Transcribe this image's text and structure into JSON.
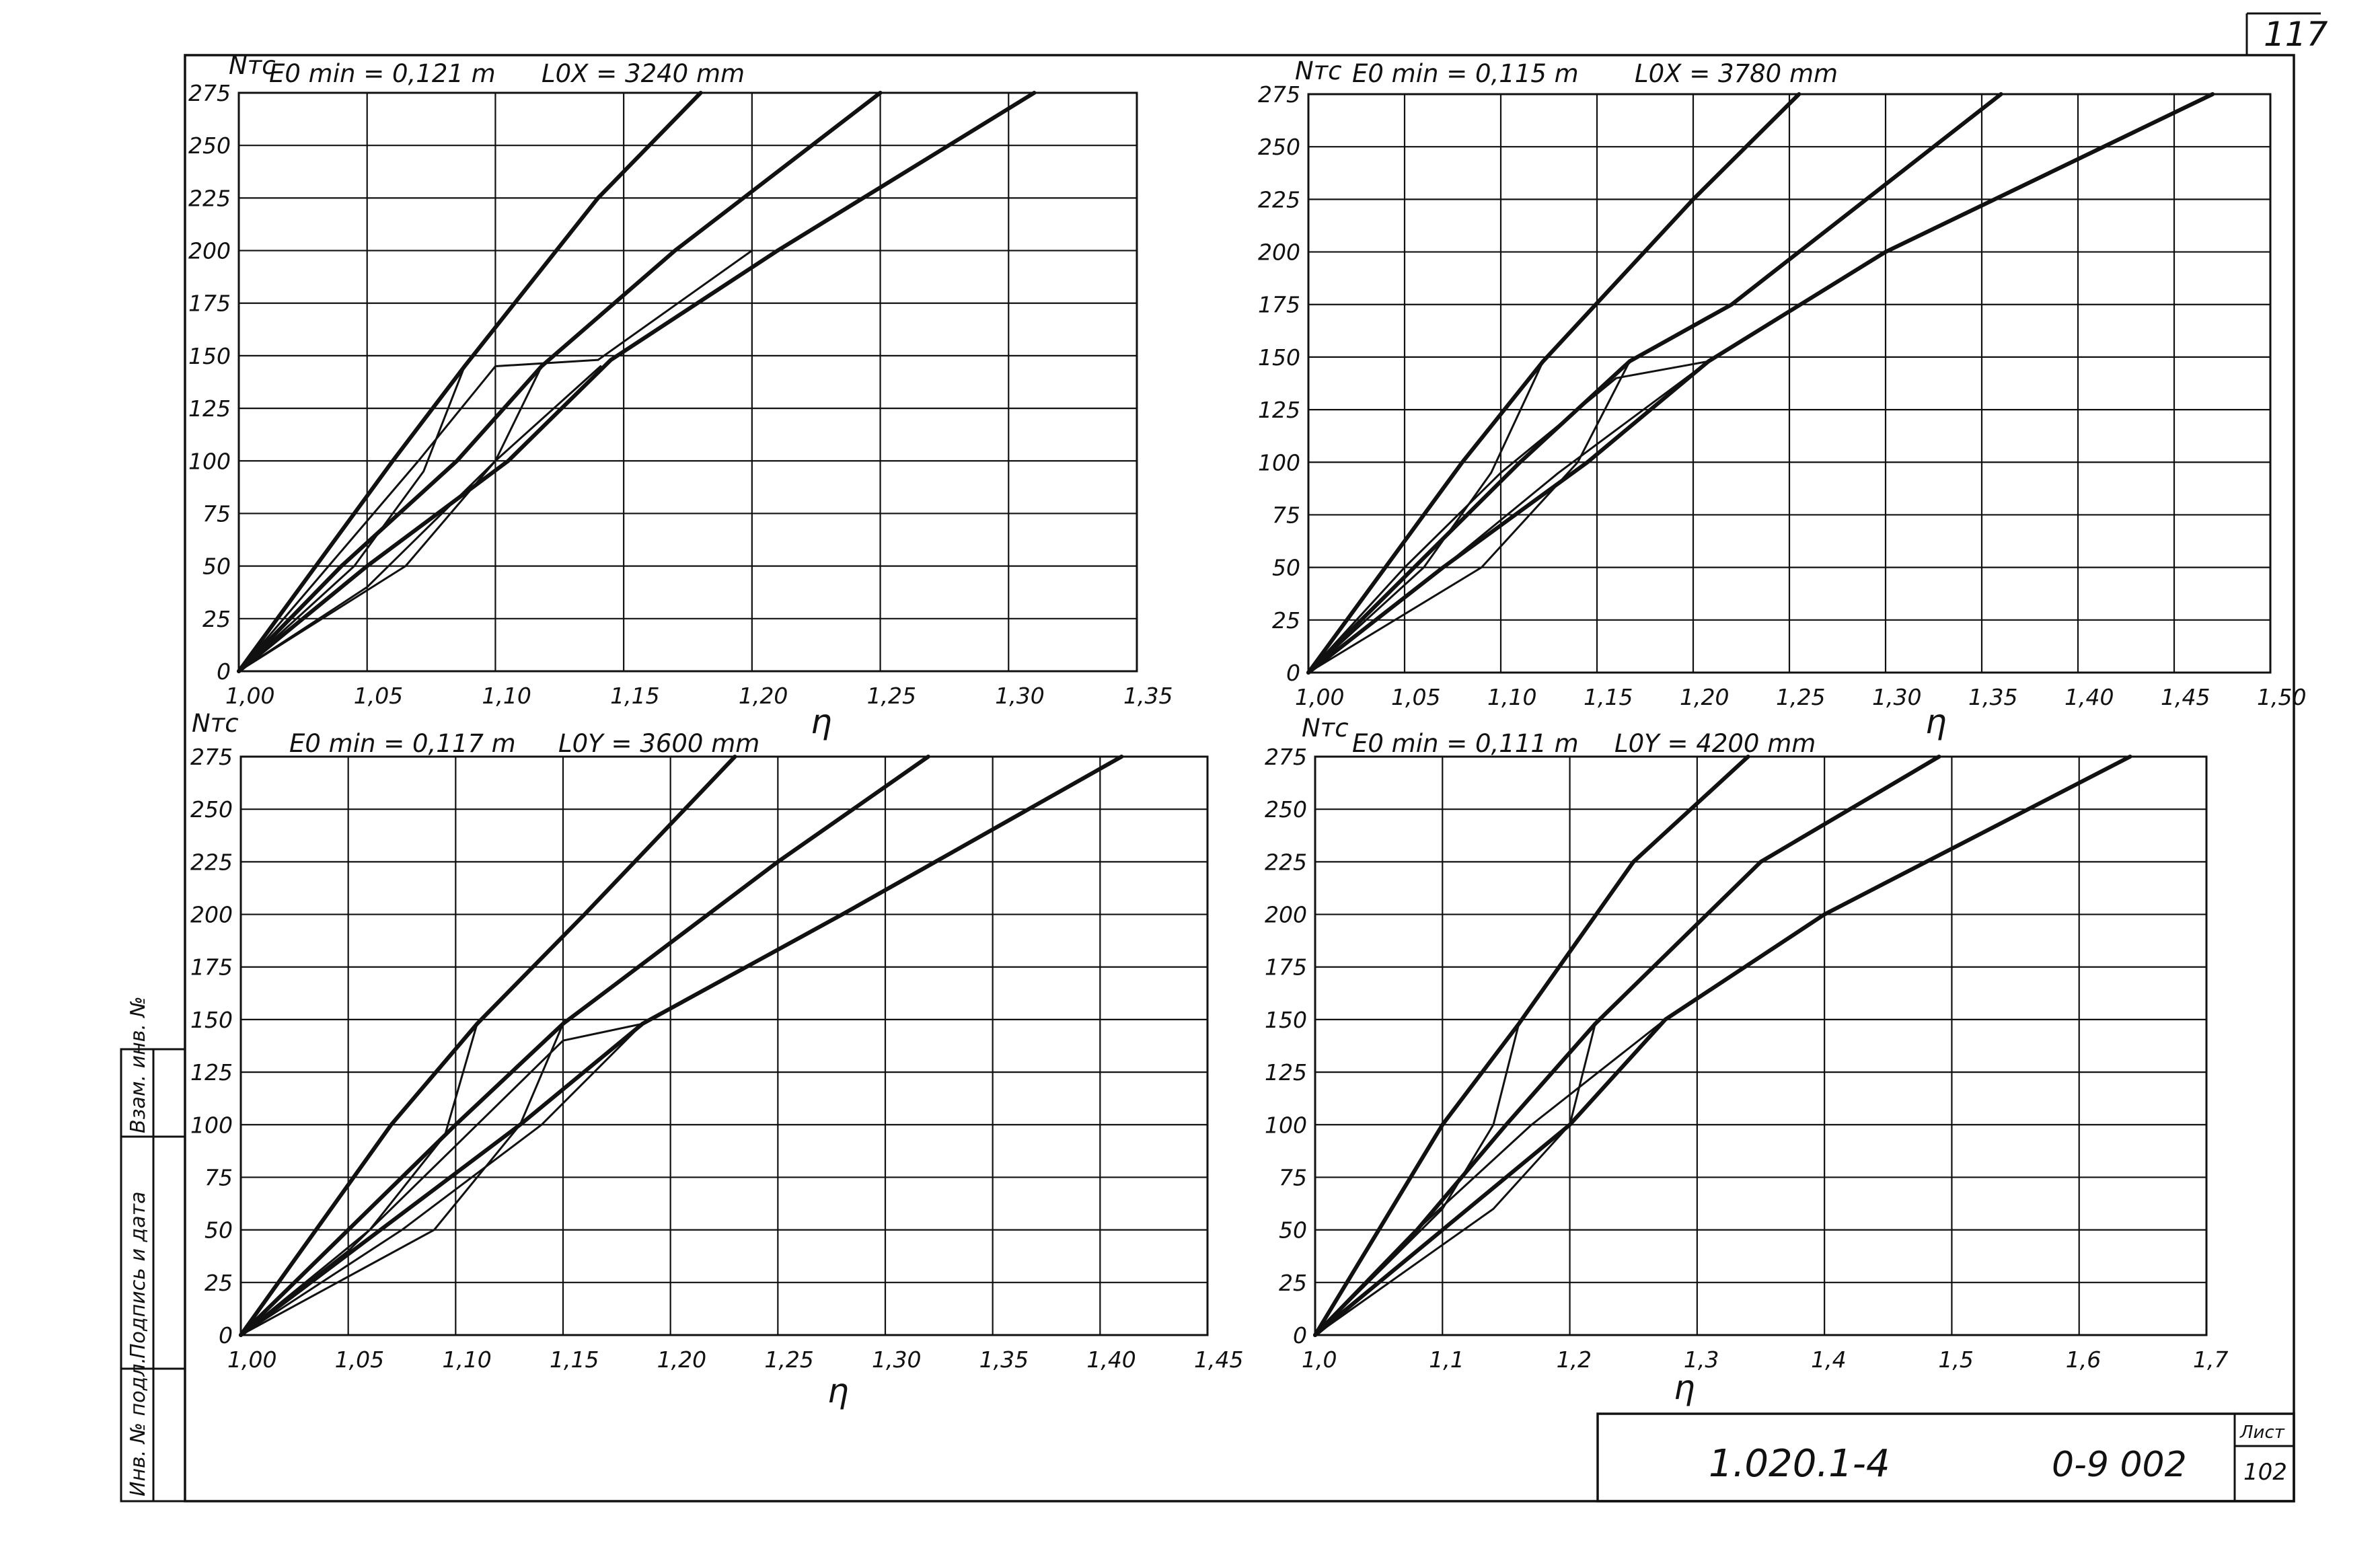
{
  "sheet": {
    "page_number": "117",
    "doc_code": "1.020.1-4",
    "doc_issue": "0-9 002",
    "sheet_label": "Лист",
    "sheet_number": "102",
    "side_stamp": [
      "Инв. № подл.",
      "Подпись и дата",
      "Взам. инв. №"
    ]
  },
  "chart_data": [
    {
      "type": "line",
      "id": "top-left",
      "y_label": "Nтс",
      "x_label": "η",
      "param_e": "E0 min = 0,121 m",
      "param_l": "L0X = 3240 mm",
      "xlim": [
        1.0,
        1.35
      ],
      "ylim": [
        0,
        275
      ],
      "x_ticks": [
        1.0,
        1.05,
        1.1,
        1.15,
        1.2,
        1.25,
        1.3,
        1.35
      ],
      "x_tick_labels": [
        "1,00",
        "1,05",
        "1,10",
        "1,15",
        "1,20",
        "1,25",
        "1,30",
        "1,35"
      ],
      "y_ticks": [
        0,
        25,
        50,
        75,
        100,
        125,
        150,
        175,
        200,
        225,
        250,
        275
      ],
      "y_tick_labels": [
        "0",
        "25",
        "50",
        "75",
        "100",
        "125",
        "150",
        "175",
        "200",
        "225",
        "250",
        "275"
      ],
      "grid": true,
      "series": [
        {
          "points": [
            [
              1.0,
              0
            ],
            [
              1.03,
              50
            ],
            [
              1.06,
              100
            ],
            [
              1.088,
              145
            ],
            [
              1.14,
              225
            ],
            [
              1.18,
              275
            ]
          ]
        },
        {
          "points": [
            [
              1.0,
              0
            ],
            [
              1.04,
              50
            ],
            [
              1.085,
              100
            ],
            [
              1.118,
              145
            ],
            [
              1.17,
              200
            ],
            [
              1.25,
              275
            ]
          ]
        },
        {
          "points": [
            [
              1.0,
              0
            ],
            [
              1.05,
              50
            ],
            [
              1.105,
              100
            ],
            [
              1.145,
              148
            ],
            [
              1.21,
              200
            ],
            [
              1.31,
              275
            ]
          ]
        },
        {
          "points": [
            [
              1.0,
              0
            ],
            [
              1.035,
              50
            ],
            [
              1.07,
              100
            ],
            [
              1.1,
              145
            ],
            [
              1.14,
              148
            ],
            [
              1.2,
              200
            ]
          ]
        },
        {
          "points": [
            [
              1.0,
              0
            ],
            [
              1.05,
              40
            ],
            [
              1.1,
              100
            ],
            [
              1.141,
              145
            ]
          ]
        },
        {
          "points": [
            [
              1.0,
              0
            ],
            [
              1.045,
              50
            ],
            [
              1.072,
              95
            ],
            [
              1.088,
              145
            ]
          ]
        },
        {
          "points": [
            [
              1.0,
              0
            ],
            [
              1.065,
              50
            ],
            [
              1.1,
              100
            ],
            [
              1.118,
              145
            ]
          ]
        }
      ]
    },
    {
      "type": "line",
      "id": "top-right",
      "y_label": "Nтс",
      "x_label": "η",
      "param_e": "E0 min = 0,115 m",
      "param_l": "L0X = 3780 mm",
      "xlim": [
        1.0,
        1.5
      ],
      "ylim": [
        0,
        275
      ],
      "x_ticks": [
        1.0,
        1.05,
        1.1,
        1.15,
        1.2,
        1.25,
        1.3,
        1.35,
        1.4,
        1.45,
        1.5
      ],
      "x_tick_labels": [
        "1,00",
        "1,05",
        "1,10",
        "1,15",
        "1,20",
        "1,25",
        "1,30",
        "1,35",
        "1,40",
        "1,45",
        "1,50"
      ],
      "y_ticks": [
        0,
        25,
        50,
        75,
        100,
        125,
        150,
        175,
        200,
        225,
        250,
        275
      ],
      "y_tick_labels": [
        "0",
        "25",
        "50",
        "75",
        "100",
        "125",
        "150",
        "175",
        "200",
        "225",
        "250",
        "275"
      ],
      "grid": true,
      "series": [
        {
          "points": [
            [
              1.0,
              0
            ],
            [
              1.04,
              50
            ],
            [
              1.08,
              100
            ],
            [
              1.122,
              148
            ],
            [
              1.2,
              225
            ],
            [
              1.255,
              275
            ]
          ]
        },
        {
          "points": [
            [
              1.0,
              0
            ],
            [
              1.055,
              50
            ],
            [
              1.11,
              100
            ],
            [
              1.167,
              148
            ],
            [
              1.22,
              175
            ],
            [
              1.36,
              275
            ]
          ]
        },
        {
          "points": [
            [
              1.0,
              0
            ],
            [
              1.07,
              50
            ],
            [
              1.145,
              100
            ],
            [
              1.208,
              148
            ],
            [
              1.3,
              200
            ],
            [
              1.47,
              275
            ]
          ]
        },
        {
          "points": [
            [
              1.0,
              0
            ],
            [
              1.05,
              50
            ],
            [
              1.1,
              95
            ],
            [
              1.16,
              140
            ],
            [
              1.208,
              148
            ]
          ]
        },
        {
          "points": [
            [
              1.0,
              0
            ],
            [
              1.07,
              50
            ],
            [
              1.13,
              95
            ],
            [
              1.208,
              148
            ]
          ]
        },
        {
          "points": [
            [
              1.0,
              0
            ],
            [
              1.06,
              50
            ],
            [
              1.095,
              95
            ],
            [
              1.122,
              148
            ]
          ]
        },
        {
          "points": [
            [
              1.0,
              0
            ],
            [
              1.09,
              50
            ],
            [
              1.14,
              100
            ],
            [
              1.167,
              148
            ]
          ]
        }
      ]
    },
    {
      "type": "line",
      "id": "bottom-left",
      "y_label": "Nтс",
      "x_label": "η",
      "param_e": "E0 min = 0,117 m",
      "param_l": "L0Y = 3600 mm",
      "xlim": [
        1.0,
        1.45
      ],
      "ylim": [
        0,
        275
      ],
      "x_ticks": [
        1.0,
        1.05,
        1.1,
        1.15,
        1.2,
        1.25,
        1.3,
        1.35,
        1.4,
        1.45
      ],
      "x_tick_labels": [
        "1,00",
        "1,05",
        "1,10",
        "1,15",
        "1,20",
        "1,25",
        "1,30",
        "1,35",
        "1,40",
        "1,45"
      ],
      "y_ticks": [
        0,
        25,
        50,
        75,
        100,
        125,
        150,
        175,
        200,
        225,
        250,
        275
      ],
      "y_tick_labels": [
        "0",
        "25",
        "50",
        "75",
        "100",
        "125",
        "150",
        "175",
        "200",
        "225",
        "250",
        "275"
      ],
      "grid": true,
      "series": [
        {
          "points": [
            [
              1.0,
              0
            ],
            [
              1.035,
              50
            ],
            [
              1.07,
              100
            ],
            [
              1.11,
              148
            ],
            [
              1.16,
              200
            ],
            [
              1.23,
              275
            ]
          ]
        },
        {
          "points": [
            [
              1.0,
              0
            ],
            [
              1.05,
              50
            ],
            [
              1.1,
              100
            ],
            [
              1.15,
              148
            ],
            [
              1.25,
              225
            ],
            [
              1.32,
              275
            ]
          ]
        },
        {
          "points": [
            [
              1.0,
              0
            ],
            [
              1.065,
              50
            ],
            [
              1.13,
              100
            ],
            [
              1.187,
              148
            ],
            [
              1.28,
              200
            ],
            [
              1.41,
              275
            ]
          ]
        },
        {
          "points": [
            [
              1.0,
              0
            ],
            [
              1.05,
              40
            ],
            [
              1.1,
              90
            ],
            [
              1.15,
              140
            ],
            [
              1.187,
              148
            ]
          ]
        },
        {
          "points": [
            [
              1.0,
              0
            ],
            [
              1.075,
              50
            ],
            [
              1.14,
              100
            ],
            [
              1.187,
              148
            ]
          ]
        },
        {
          "points": [
            [
              1.0,
              0
            ],
            [
              1.06,
              50
            ],
            [
              1.095,
              95
            ],
            [
              1.11,
              148
            ]
          ]
        },
        {
          "points": [
            [
              1.0,
              0
            ],
            [
              1.09,
              50
            ],
            [
              1.13,
              100
            ],
            [
              1.15,
              148
            ]
          ]
        }
      ]
    },
    {
      "type": "line",
      "id": "bottom-right",
      "y_label": "Nтс",
      "x_label": "η",
      "param_e": "E0 min = 0,111 m",
      "param_l": "L0Y = 4200 mm",
      "xlim": [
        1.0,
        1.7
      ],
      "ylim": [
        0,
        275
      ],
      "x_ticks": [
        1.0,
        1.1,
        1.2,
        1.3,
        1.4,
        1.5,
        1.6,
        1.7
      ],
      "x_tick_labels": [
        "1,0",
        "1,1",
        "1,2",
        "1,3",
        "1,4",
        "1,5",
        "1,6",
        "1,7"
      ],
      "y_ticks": [
        0,
        25,
        50,
        75,
        100,
        125,
        150,
        175,
        200,
        225,
        250,
        275
      ],
      "y_tick_labels": [
        "0",
        "25",
        "50",
        "75",
        "100",
        "125",
        "150",
        "175",
        "200",
        "225",
        "250",
        "275"
      ],
      "grid": true,
      "series": [
        {
          "points": [
            [
              1.0,
              0
            ],
            [
              1.05,
              50
            ],
            [
              1.1,
              100
            ],
            [
              1.16,
              148
            ],
            [
              1.25,
              225
            ],
            [
              1.34,
              275
            ]
          ]
        },
        {
          "points": [
            [
              1.0,
              0
            ],
            [
              1.08,
              50
            ],
            [
              1.15,
              100
            ],
            [
              1.22,
              148
            ],
            [
              1.35,
              225
            ],
            [
              1.49,
              275
            ]
          ]
        },
        {
          "points": [
            [
              1.0,
              0
            ],
            [
              1.1,
              50
            ],
            [
              1.2,
              100
            ],
            [
              1.275,
              150
            ],
            [
              1.4,
              200
            ],
            [
              1.64,
              275
            ]
          ]
        },
        {
          "points": [
            [
              1.0,
              0
            ],
            [
              1.08,
              50
            ],
            [
              1.17,
              100
            ],
            [
              1.275,
              150
            ]
          ]
        },
        {
          "points": [
            [
              1.0,
              0
            ],
            [
              1.1,
              50
            ],
            [
              1.2,
              100
            ],
            [
              1.275,
              150
            ]
          ]
        },
        {
          "points": [
            [
              1.0,
              0
            ],
            [
              1.1,
              60
            ],
            [
              1.14,
              100
            ],
            [
              1.16,
              148
            ]
          ]
        },
        {
          "points": [
            [
              1.0,
              0
            ],
            [
              1.14,
              60
            ],
            [
              1.2,
              100
            ],
            [
              1.22,
              148
            ]
          ]
        }
      ]
    }
  ]
}
